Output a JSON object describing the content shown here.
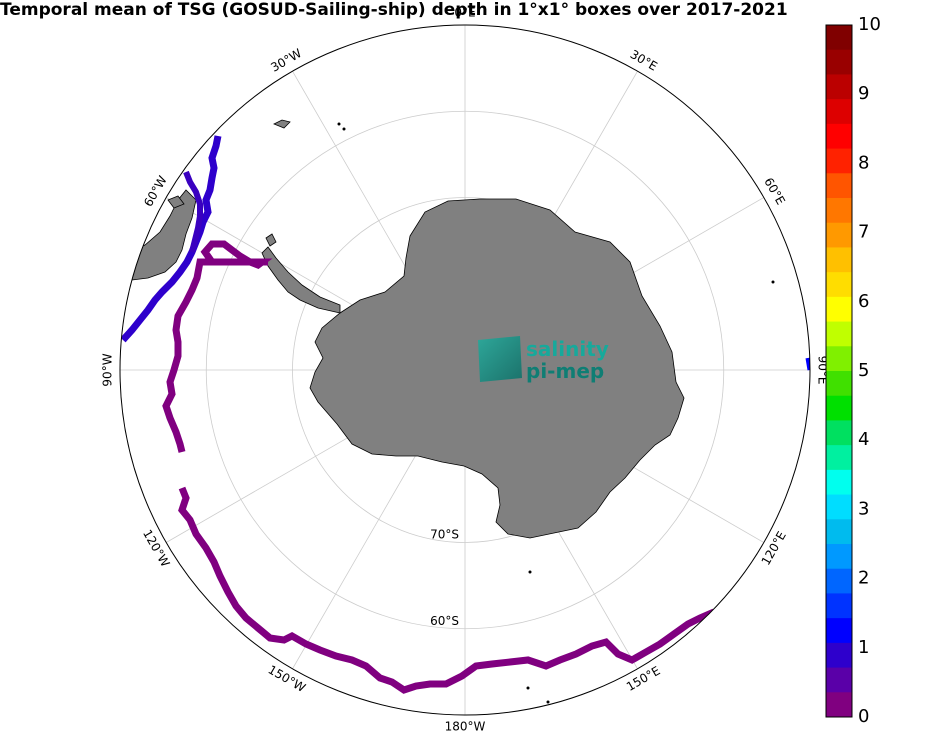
{
  "title": "Temporal mean of TSG (GOSUD-Sailing-ship) depth in 1°x1° boxes over 2017-2021",
  "logo": {
    "line1": "salinity",
    "line2": "pi-mep"
  },
  "meridian_labels": [
    {
      "name": "meridian-label-0e",
      "text": "0°E",
      "lon": 0
    },
    {
      "name": "meridian-label-30e",
      "text": "30°E",
      "lon": 30
    },
    {
      "name": "meridian-label-60e",
      "text": "60°E",
      "lon": 60
    },
    {
      "name": "meridian-label-90e",
      "text": "90°E",
      "lon": 90
    },
    {
      "name": "meridian-label-120e",
      "text": "120°E",
      "lon": 120
    },
    {
      "name": "meridian-label-150e",
      "text": "150°E",
      "lon": 150
    },
    {
      "name": "meridian-label-180w",
      "text": "180°W",
      "lon": 180
    },
    {
      "name": "meridian-label-150w",
      "text": "150°W",
      "lon": -150
    },
    {
      "name": "meridian-label-120w",
      "text": "120°W",
      "lon": -120
    },
    {
      "name": "meridian-label-90w",
      "text": "90°W",
      "lon": -90
    },
    {
      "name": "meridian-label-60w",
      "text": "60°W",
      "lon": -60
    },
    {
      "name": "meridian-label-30w",
      "text": "30°W",
      "lon": -30
    }
  ],
  "parallel_labels": [
    {
      "name": "parallel-label-70s",
      "text": "70°S",
      "lat": -70
    },
    {
      "name": "parallel-label-60s",
      "text": "60°S",
      "lat": -60
    }
  ],
  "map_extent": {
    "projection": "south polar stereographic",
    "parallels": [
      -80,
      -70,
      -60,
      -50
    ],
    "meridian_step_deg": 30
  },
  "colorbar": {
    "min": 0,
    "max": 10,
    "tick_labels": [
      "0",
      "1",
      "2",
      "3",
      "4",
      "5",
      "6",
      "7",
      "8",
      "9",
      "10"
    ],
    "colors": [
      "#800080",
      "#5a00a8",
      "#2e00cc",
      "#0000ff",
      "#0033ff",
      "#0066ff",
      "#0099ff",
      "#00bbee",
      "#00ddff",
      "#00ffee",
      "#00f0a0",
      "#00e060",
      "#00e000",
      "#40e000",
      "#80f000",
      "#c0ff00",
      "#ffff00",
      "#ffdd00",
      "#ffc000",
      "#ff9900",
      "#ff7700",
      "#ff5500",
      "#ff2200",
      "#ff0000",
      "#dd0000",
      "#bb0000",
      "#990000",
      "#800000"
    ]
  },
  "tracks": [
    {
      "name": "track-drake-passage-west",
      "value": 1.5,
      "color": "#2e00cc"
    },
    {
      "name": "track-drake-passage-east",
      "value": 1.0,
      "color": "#3a00c0"
    },
    {
      "name": "track-bellingshausen",
      "value": 0.3,
      "color": "#800080"
    },
    {
      "name": "track-amundsen-ross",
      "value": 0.3,
      "color": "#800080"
    },
    {
      "name": "track-greenwich-east",
      "value": 2.0,
      "color": "#0000ff"
    }
  ]
}
